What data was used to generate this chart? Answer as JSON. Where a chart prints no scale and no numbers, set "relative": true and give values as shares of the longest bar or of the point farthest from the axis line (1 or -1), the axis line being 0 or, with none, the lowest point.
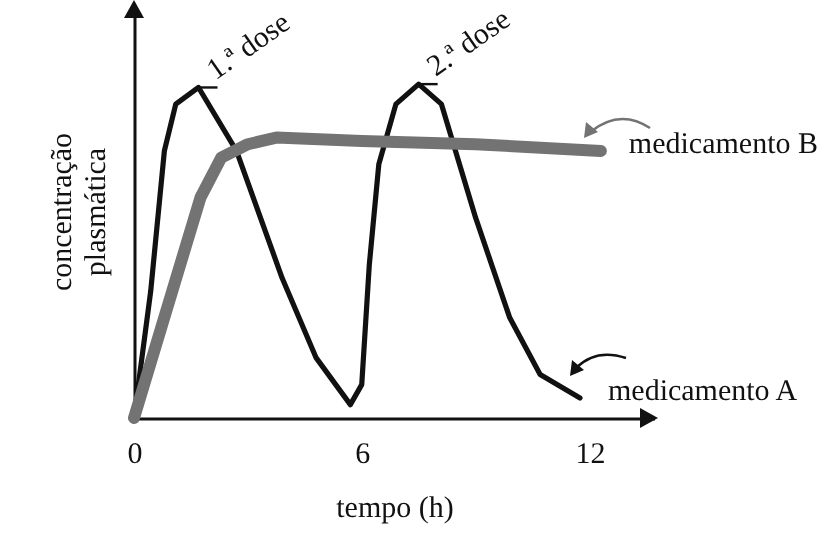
{
  "chart_data": {
    "type": "line",
    "relative": true,
    "xlabel": "tempo (h)",
    "ylabel": "concentração plasmática",
    "xlim": [
      0,
      13.7
    ],
    "xticks": [
      0,
      6,
      12
    ],
    "grid": false,
    "legend": "right",
    "line_style": "solid",
    "series": [
      {
        "name": "medicamento A",
        "color": "#111111",
        "x": [
          0,
          0.44,
          0.8,
          1.1,
          1.7,
          2.7,
          3.9,
          4.8,
          5.7,
          6.0,
          6.2,
          6.45,
          6.9,
          7.5,
          8.1,
          9.0,
          9.9,
          10.7,
          11.75
        ],
        "values": [
          0,
          0.38,
          0.8,
          0.94,
          0.99,
          0.8,
          0.42,
          0.18,
          0.04,
          0.1,
          0.46,
          0.76,
          0.94,
          1,
          0.94,
          0.6,
          0.3,
          0.13,
          0.06
        ]
      },
      {
        "name": "medicamento B",
        "color": "#737373",
        "x": [
          0,
          1.75,
          2.3,
          3.0,
          3.75,
          6,
          9,
          12.3
        ],
        "values": [
          0,
          0.66,
          0.78,
          0.82,
          0.84,
          0.83,
          0.82,
          0.8
        ]
      }
    ],
    "annotations": [
      {
        "text": "1.ª dose",
        "x": 1.7,
        "y": 0.99
      },
      {
        "text": "2.ª dose",
        "x": 7.5,
        "y": 1
      }
    ]
  }
}
